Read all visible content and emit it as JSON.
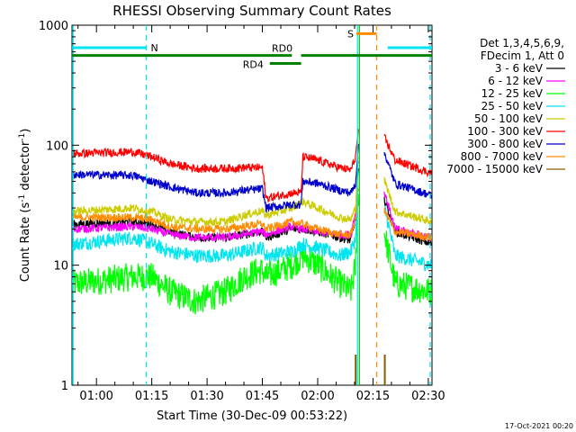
{
  "chart_data": {
    "type": "line",
    "title": "RHESSI Observing Summary Count Rates",
    "xlabel": "Start Time (30-Dec-09 00:53:22)",
    "ylabel_main": "Count Rate (s",
    "ylabel_sup1": "-1",
    "ylabel_mid": " detector",
    "ylabel_sup2": "-1",
    "ylabel_end": ")",
    "yscale": "log",
    "ylim": [
      1,
      1000
    ],
    "xlim_minutes": [
      53.37,
      151.0
    ],
    "x_ticks": [
      {
        "minute": 60,
        "label": "01:00"
      },
      {
        "minute": 75,
        "label": "01:15"
      },
      {
        "minute": 90,
        "label": "01:30"
      },
      {
        "minute": 105,
        "label": "01:45"
      },
      {
        "minute": 120,
        "label": "02:00"
      },
      {
        "minute": 135,
        "label": "02:15"
      },
      {
        "minute": 150,
        "label": "02:30"
      }
    ],
    "y_ticks": [
      {
        "value": 1,
        "label": "1"
      },
      {
        "value": 10,
        "label": "10"
      },
      {
        "value": 100,
        "label": "100"
      },
      {
        "value": 1000,
        "label": "1000"
      }
    ],
    "legend_header": [
      "Det 1,3,4,5,6,9,",
      "FDecim 1, Att 0"
    ],
    "bars": {
      "night": {
        "label": "N",
        "color": "#00e5ee",
        "y": 650,
        "segments": [
          [
            53.4,
            73.5
          ],
          [
            139.0,
            151.0
          ]
        ]
      },
      "saa": {
        "label": "S",
        "color": "#ff8c00",
        "y": 850,
        "segments": [
          [
            130.5,
            136.0
          ]
        ]
      },
      "rd0": {
        "label": "RD0",
        "color": "#008000",
        "y": 560,
        "segments": [
          [
            53.4,
            113.0
          ],
          [
            115.5,
            151.0
          ]
        ]
      },
      "rd4": {
        "label": "RD4",
        "color": "#008000",
        "y": 480,
        "segments": [
          [
            107.0,
            115.5
          ]
        ]
      }
    },
    "markers": [
      {
        "minute": 73.5,
        "color": "#00e5ee",
        "style": "dashed"
      },
      {
        "minute": 130.8,
        "color": "#00e5ee",
        "style": "solid"
      },
      {
        "minute": 131.3,
        "color": "#00c000",
        "style": "solid"
      },
      {
        "minute": 136.0,
        "color": "#ff8c00",
        "style": "dashed"
      },
      {
        "minute": 150.5,
        "color": "#00e5ee",
        "style": "dashed"
      }
    ],
    "flare": {
      "start": 130.4,
      "peak": 130.9,
      "gap_end": 138.0,
      "tail_end": 141.0
    },
    "gaps": [
      [
        131.2,
        138.0
      ]
    ],
    "series": [
      {
        "name": "3 - 6 keV",
        "color": "#000000",
        "points": [
          [
            53.5,
            22
          ],
          [
            70,
            23
          ],
          [
            75,
            22
          ],
          [
            80,
            19
          ],
          [
            87,
            17
          ],
          [
            95,
            17
          ],
          [
            100,
            18
          ],
          [
            104,
            19
          ],
          [
            105,
            19
          ],
          [
            106,
            17
          ],
          [
            113,
            20
          ],
          [
            116,
            20
          ],
          [
            120,
            19
          ],
          [
            126,
            17
          ],
          [
            129,
            16
          ],
          [
            130.3,
            25
          ],
          [
            130.9,
            60
          ],
          [
            138.2,
            35
          ],
          [
            141,
            19
          ],
          [
            151,
            15
          ]
        ]
      },
      {
        "name": "6 - 12 keV",
        "color": "#ff00ff",
        "points": [
          [
            53.5,
            20
          ],
          [
            70,
            21
          ],
          [
            75,
            20
          ],
          [
            80,
            18
          ],
          [
            87,
            17
          ],
          [
            95,
            17
          ],
          [
            100,
            18
          ],
          [
            104,
            19
          ],
          [
            105,
            19
          ],
          [
            106,
            18
          ],
          [
            113,
            21
          ],
          [
            116,
            20
          ],
          [
            120,
            19
          ],
          [
            126,
            18
          ],
          [
            129,
            18
          ],
          [
            130.3,
            28
          ],
          [
            130.9,
            75
          ],
          [
            138.2,
            40
          ],
          [
            141,
            20
          ],
          [
            151,
            17
          ]
        ]
      },
      {
        "name": "12 - 25 keV",
        "color": "#00ff00",
        "points": [
          [
            53.5,
            7
          ],
          [
            70,
            8
          ],
          [
            75,
            8
          ],
          [
            80,
            6
          ],
          [
            87,
            5
          ],
          [
            95,
            6
          ],
          [
            100,
            8
          ],
          [
            104,
            9
          ],
          [
            105,
            9
          ],
          [
            106,
            8
          ],
          [
            113,
            10
          ],
          [
            116,
            12
          ],
          [
            120,
            10
          ],
          [
            126,
            7
          ],
          [
            129,
            6
          ],
          [
            130.3,
            10
          ],
          [
            130.9,
            40
          ],
          [
            138.2,
            18
          ],
          [
            141,
            7
          ],
          [
            151,
            6
          ]
        ]
      },
      {
        "name": "25 - 50 keV",
        "color": "#00e5ee",
        "points": [
          [
            53.5,
            15
          ],
          [
            70,
            17
          ],
          [
            75,
            15
          ],
          [
            80,
            13
          ],
          [
            87,
            12
          ],
          [
            95,
            12
          ],
          [
            100,
            13
          ],
          [
            104,
            14
          ],
          [
            105,
            14
          ],
          [
            106,
            12
          ],
          [
            113,
            13
          ],
          [
            116,
            15
          ],
          [
            120,
            14
          ],
          [
            126,
            12
          ],
          [
            129,
            13
          ],
          [
            130.3,
            17
          ],
          [
            130.9,
            60
          ],
          [
            138.2,
            30
          ],
          [
            141,
            12
          ],
          [
            151,
            10
          ]
        ]
      },
      {
        "name": "50 - 100 keV",
        "color": "#cccc00",
        "points": [
          [
            53.5,
            28
          ],
          [
            70,
            30
          ],
          [
            75,
            28
          ],
          [
            80,
            24
          ],
          [
            87,
            23
          ],
          [
            95,
            23
          ],
          [
            100,
            26
          ],
          [
            104,
            28
          ],
          [
            105,
            28
          ],
          [
            106,
            26
          ],
          [
            113,
            30
          ],
          [
            116,
            34
          ],
          [
            120,
            30
          ],
          [
            126,
            25
          ],
          [
            129,
            24
          ],
          [
            130.3,
            30
          ],
          [
            130.9,
            80
          ],
          [
            138.2,
            50
          ],
          [
            141,
            28
          ],
          [
            151,
            23
          ]
        ]
      },
      {
        "name": "100 - 300 keV",
        "color": "#ff0000",
        "points": [
          [
            53.5,
            85
          ],
          [
            70,
            88
          ],
          [
            75,
            80
          ],
          [
            80,
            70
          ],
          [
            87,
            64
          ],
          [
            95,
            64
          ],
          [
            100,
            65
          ],
          [
            104,
            65
          ],
          [
            105,
            65
          ],
          [
            106,
            36
          ],
          [
            113,
            40
          ],
          [
            115.5,
            40
          ],
          [
            116,
            80
          ],
          [
            120,
            75
          ],
          [
            126,
            65
          ],
          [
            129,
            62
          ],
          [
            130.3,
            80
          ],
          [
            130.9,
            125
          ],
          [
            138.2,
            115
          ],
          [
            141,
            75
          ],
          [
            151,
            58
          ]
        ]
      },
      {
        "name": "300 - 800 keV",
        "color": "#0000cc",
        "points": [
          [
            53.5,
            57
          ],
          [
            70,
            56
          ],
          [
            75,
            50
          ],
          [
            80,
            45
          ],
          [
            87,
            40
          ],
          [
            95,
            40
          ],
          [
            100,
            42
          ],
          [
            104,
            43
          ],
          [
            105,
            43
          ],
          [
            106,
            30
          ],
          [
            113,
            32
          ],
          [
            115.5,
            32
          ],
          [
            116,
            50
          ],
          [
            120,
            48
          ],
          [
            126,
            42
          ],
          [
            129,
            40
          ],
          [
            130.3,
            48
          ],
          [
            130.9,
            95
          ],
          [
            138.2,
            85
          ],
          [
            141,
            48
          ],
          [
            151,
            38
          ]
        ]
      },
      {
        "name": "800 - 7000 keV",
        "color": "#ff8c00",
        "points": [
          [
            53.5,
            25
          ],
          [
            70,
            25
          ],
          [
            75,
            24
          ],
          [
            80,
            21
          ],
          [
            87,
            20
          ],
          [
            95,
            20
          ],
          [
            100,
            21
          ],
          [
            104,
            22
          ],
          [
            105,
            22
          ],
          [
            106,
            20
          ],
          [
            113,
            23
          ],
          [
            116,
            22
          ],
          [
            120,
            20
          ],
          [
            126,
            18
          ],
          [
            129,
            18
          ],
          [
            130.3,
            24
          ],
          [
            130.9,
            45
          ],
          [
            138.2,
            28
          ],
          [
            141,
            19
          ],
          [
            151,
            17
          ]
        ]
      },
      {
        "name": "7000 - 15000 keV",
        "color": "#806000",
        "points": [
          [
            130.0,
            1
          ],
          [
            130.3,
            1.8
          ],
          [
            130.6,
            1
          ],
          [
            137.9,
            1
          ],
          [
            138.2,
            1.8
          ],
          [
            138.5,
            1
          ]
        ]
      }
    ],
    "timestamp": "17-Oct-2021 00:20"
  }
}
